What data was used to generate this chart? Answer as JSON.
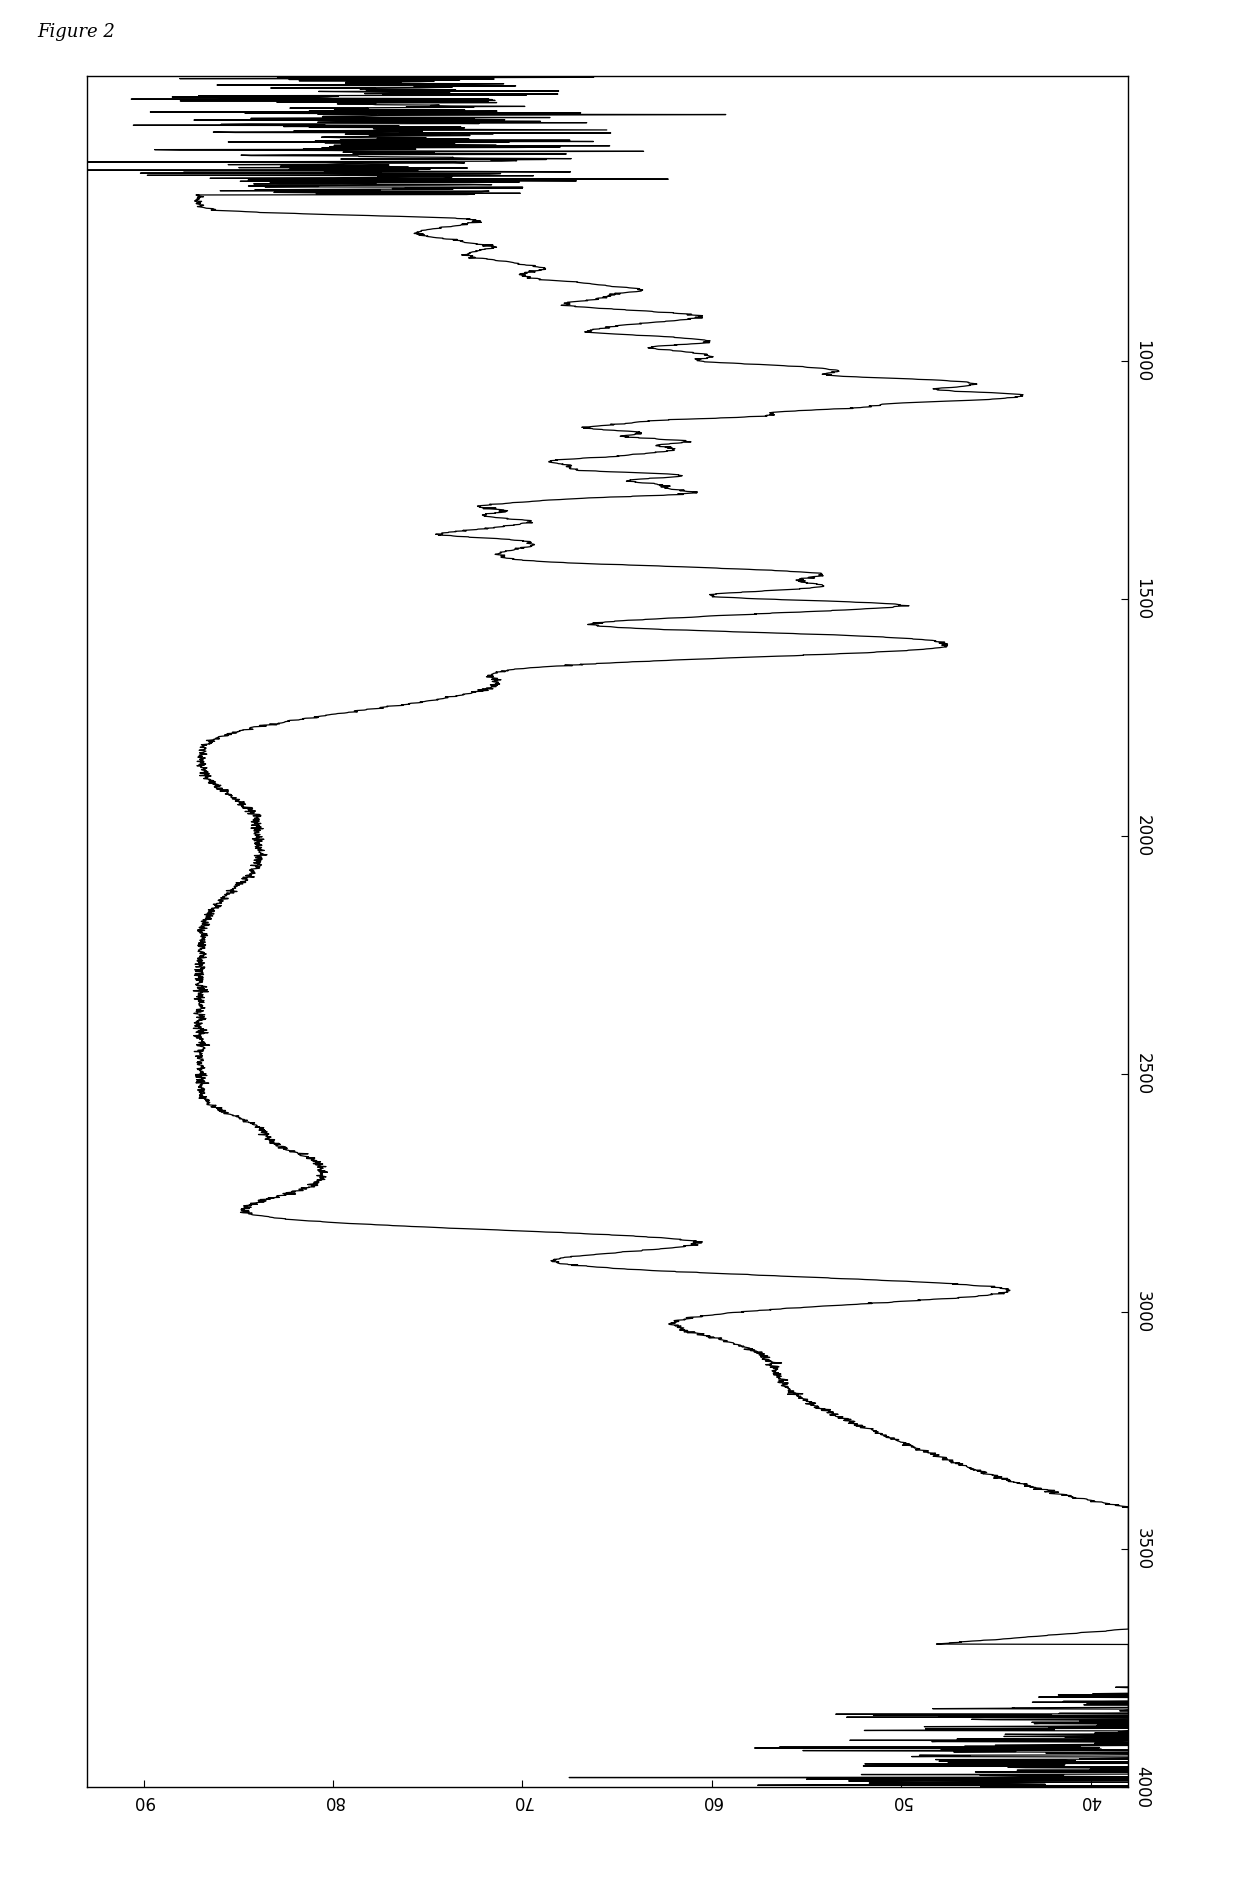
{
  "title": "Figure 2",
  "wavenumber_ticks": [
    4000,
    3500,
    3000,
    2500,
    2000,
    1500,
    1000
  ],
  "transmittance_ticks": [
    40,
    50,
    60,
    70,
    80,
    90
  ],
  "wn_min": 400,
  "wn_max": 4000,
  "t_min": 38,
  "t_max": 93,
  "line_color": "#000000",
  "background_color": "#ffffff",
  "figsize": [
    12.4,
    19.01
  ],
  "dpi": 100
}
